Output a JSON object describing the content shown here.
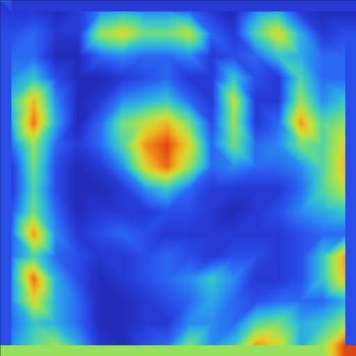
{
  "chart_data": {
    "type": "heatmap",
    "tick_labels": false,
    "zlim": [
      0,
      1
    ],
    "cells": [
      [
        0.2,
        0.2,
        0.15,
        0.2,
        0.35,
        0.4,
        0.35,
        0.35,
        0.3,
        0.2,
        0.15,
        0.35,
        0.4,
        0.2,
        0.15,
        0.15
      ],
      [
        0.25,
        0.3,
        0.2,
        0.2,
        0.6,
        0.7,
        0.55,
        0.55,
        0.65,
        0.3,
        0.2,
        0.5,
        0.7,
        0.4,
        0.2,
        0.25
      ],
      [
        0.3,
        0.3,
        0.15,
        0.15,
        0.3,
        0.35,
        0.3,
        0.3,
        0.35,
        0.2,
        0.25,
        0.3,
        0.45,
        0.4,
        0.3,
        0.3
      ],
      [
        0.35,
        0.45,
        0.25,
        0.15,
        0.15,
        0.2,
        0.25,
        0.3,
        0.2,
        0.2,
        0.45,
        0.25,
        0.2,
        0.5,
        0.3,
        0.3
      ],
      [
        0.45,
        0.75,
        0.35,
        0.15,
        0.2,
        0.35,
        0.4,
        0.45,
        0.3,
        0.2,
        0.65,
        0.2,
        0.2,
        0.6,
        0.35,
        0.45
      ],
      [
        0.4,
        0.85,
        0.4,
        0.15,
        0.3,
        0.55,
        0.65,
        0.75,
        0.55,
        0.25,
        0.6,
        0.2,
        0.3,
        0.8,
        0.5,
        0.6
      ],
      [
        0.3,
        0.6,
        0.3,
        0.2,
        0.3,
        0.5,
        0.8,
        0.9,
        0.7,
        0.3,
        0.55,
        0.3,
        0.35,
        0.55,
        0.5,
        0.7
      ],
      [
        0.2,
        0.55,
        0.25,
        0.15,
        0.2,
        0.35,
        0.7,
        0.85,
        0.6,
        0.3,
        0.35,
        0.3,
        0.3,
        0.35,
        0.5,
        0.75
      ],
      [
        0.2,
        0.5,
        0.25,
        0.15,
        0.15,
        0.2,
        0.35,
        0.45,
        0.3,
        0.2,
        0.2,
        0.2,
        0.2,
        0.3,
        0.5,
        0.65
      ],
      [
        0.25,
        0.55,
        0.3,
        0.15,
        0.2,
        0.2,
        0.2,
        0.25,
        0.25,
        0.2,
        0.15,
        0.2,
        0.25,
        0.35,
        0.4,
        0.45
      ],
      [
        0.3,
        0.8,
        0.35,
        0.2,
        0.25,
        0.3,
        0.25,
        0.2,
        0.2,
        0.2,
        0.2,
        0.2,
        0.2,
        0.25,
        0.3,
        0.3
      ],
      [
        0.3,
        0.5,
        0.3,
        0.25,
        0.2,
        0.2,
        0.25,
        0.3,
        0.25,
        0.2,
        0.25,
        0.25,
        0.2,
        0.25,
        0.45,
        0.8
      ],
      [
        0.35,
        0.85,
        0.4,
        0.25,
        0.15,
        0.2,
        0.25,
        0.3,
        0.35,
        0.45,
        0.35,
        0.2,
        0.2,
        0.25,
        0.45,
        0.75
      ],
      [
        0.35,
        0.7,
        0.4,
        0.3,
        0.15,
        0.15,
        0.2,
        0.25,
        0.3,
        0.4,
        0.3,
        0.25,
        0.3,
        0.3,
        0.3,
        0.4
      ],
      [
        0.3,
        0.45,
        0.4,
        0.3,
        0.15,
        0.15,
        0.2,
        0.2,
        0.35,
        0.35,
        0.3,
        0.5,
        0.55,
        0.4,
        0.45,
        0.6
      ],
      [
        0.35,
        0.5,
        0.6,
        0.4,
        0.2,
        0.15,
        0.25,
        0.3,
        0.55,
        0.35,
        0.45,
        0.8,
        0.7,
        0.4,
        0.6,
        0.9
      ]
    ]
  }
}
